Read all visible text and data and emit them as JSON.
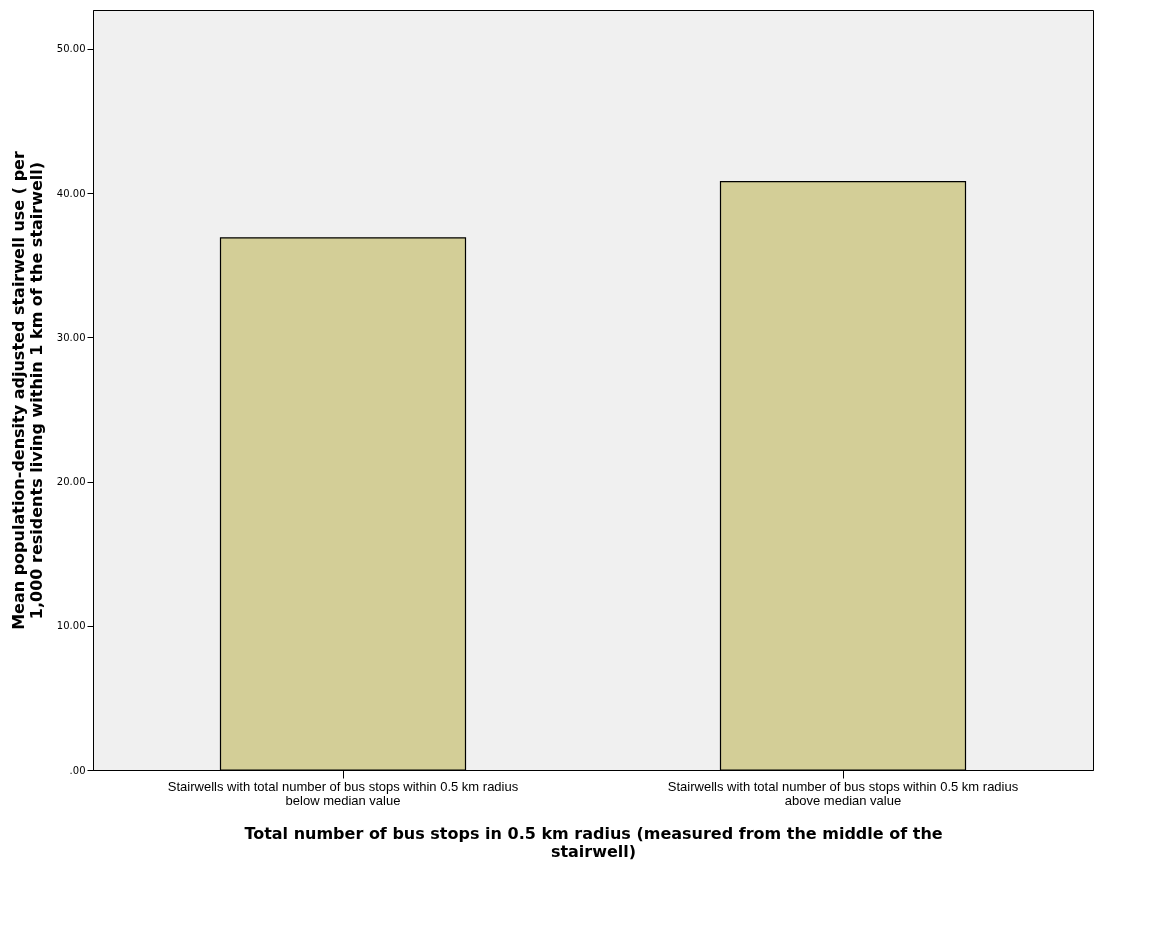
{
  "chart_data": {
    "type": "bar",
    "xlabel": "Total number of bus stops in 0.5 km radius (measured from the middle of the stairwell)",
    "ylabel": "Mean population-density adjusted stairwell use ( per 1,000 residents living within 1 km of the stairwell)",
    "categories": [
      "Stairwells with total number of bus stops within 0.5 km radius  below median value",
      "Stairwells with total number of bus stops within 0.5 km radius  above median value"
    ],
    "values": [
      36.9,
      40.8
    ],
    "color": "#d3ce97",
    "ylim": [
      0,
      52.7
    ],
    "yticks": [
      {
        "value": 0,
        "label": ".00"
      },
      {
        "value": 10,
        "label": "10.00"
      },
      {
        "value": 20,
        "label": "20.00"
      },
      {
        "value": 30,
        "label": "30.00"
      },
      {
        "value": 40,
        "label": "40.00"
      },
      {
        "value": 50,
        "label": "50.00"
      }
    ],
    "grid": false
  }
}
